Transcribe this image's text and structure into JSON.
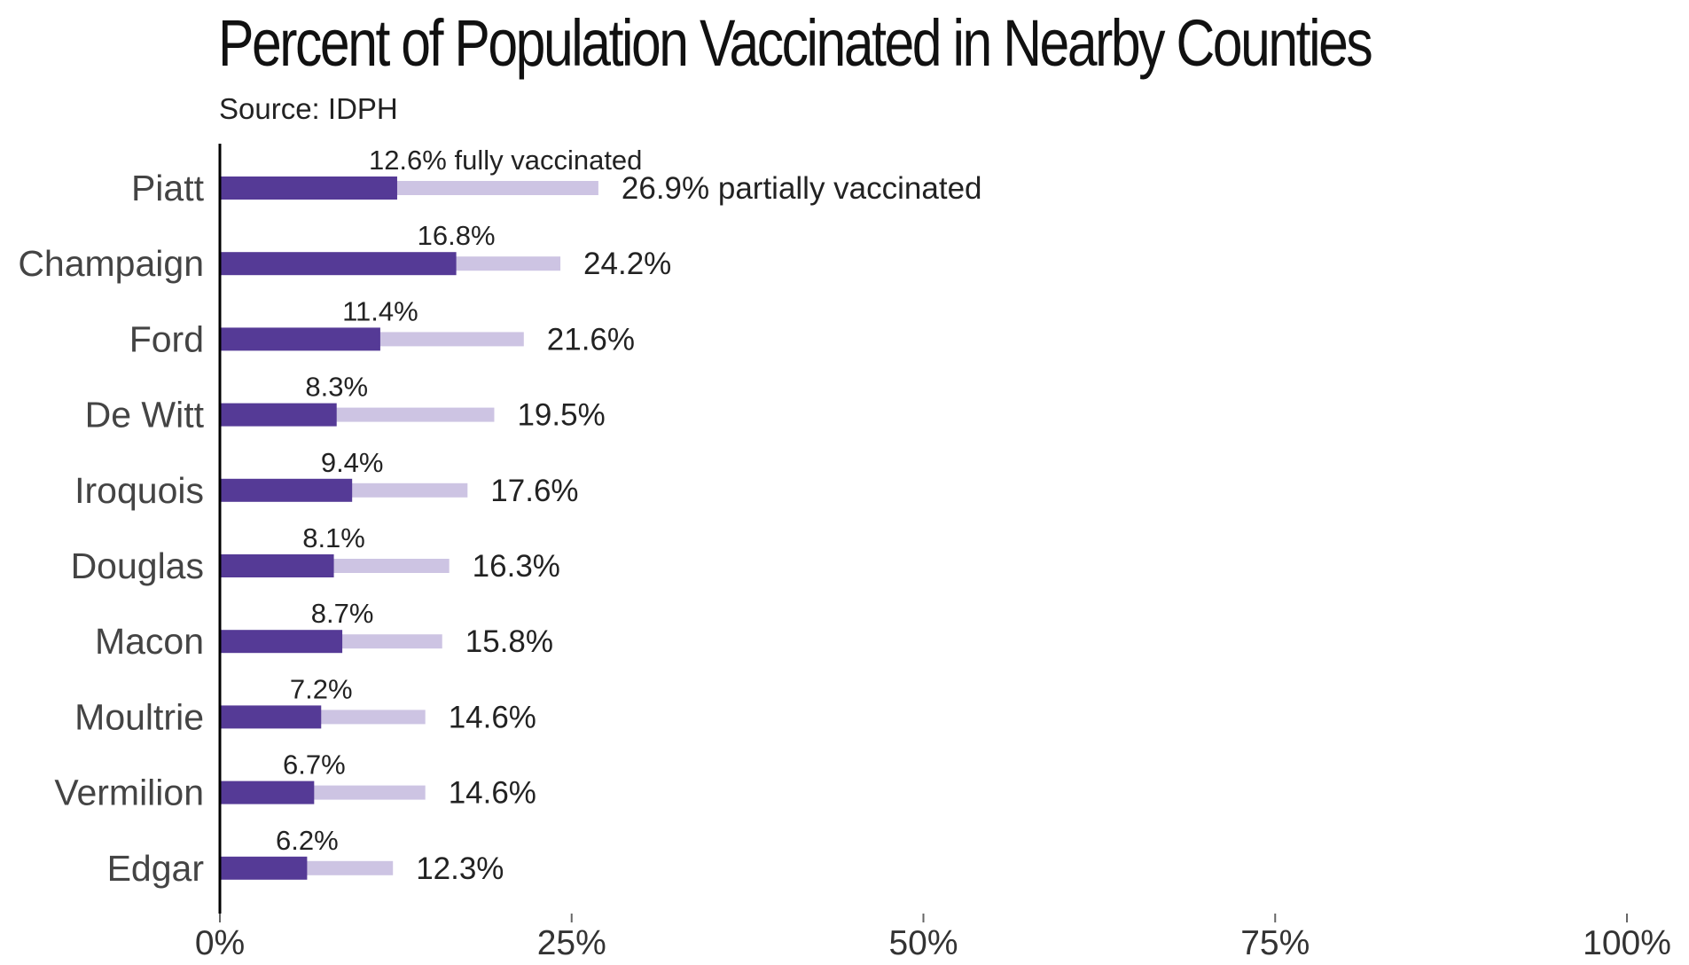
{
  "title": "Percent of Population Vaccinated in Nearby Counties",
  "subtitle": "Source: IDPH",
  "colors": {
    "fully": "#553a96",
    "partially": "#cdc4e3",
    "axis": "#000000"
  },
  "chart_data": {
    "type": "bar",
    "orientation": "horizontal",
    "title": "Percent of Population Vaccinated in Nearby Counties",
    "subtitle": "Source: IDPH",
    "categories": [
      "Piatt",
      "Champaign",
      "Ford",
      "De Witt",
      "Iroquois",
      "Douglas",
      "Macon",
      "Moultrie",
      "Vermilion",
      "Edgar"
    ],
    "series": [
      {
        "name": "fully vaccinated",
        "values": [
          12.6,
          16.8,
          11.4,
          8.3,
          9.4,
          8.1,
          8.7,
          7.2,
          6.7,
          6.2
        ]
      },
      {
        "name": "partially vaccinated",
        "values": [
          26.9,
          24.2,
          21.6,
          19.5,
          17.6,
          16.3,
          15.8,
          14.6,
          14.6,
          12.3
        ]
      }
    ],
    "full_labels": [
      "12.6% fully vaccinated",
      "16.8%",
      "11.4%",
      "8.3%",
      "9.4%",
      "8.1%",
      "8.7%",
      "7.2%",
      "6.7%",
      "6.2%"
    ],
    "partial_labels": [
      "26.9% partially vaccinated",
      "24.2%",
      "21.6%",
      "19.5%",
      "17.6%",
      "16.3%",
      "15.8%",
      "14.6%",
      "14.6%",
      "12.3%"
    ],
    "xlim": [
      0,
      100
    ],
    "xticks": [
      0,
      25,
      50,
      75,
      100
    ],
    "xtick_labels": [
      "0%",
      "25%",
      "50%",
      "75%",
      "100%"
    ],
    "grid": false,
    "legend": "none"
  }
}
